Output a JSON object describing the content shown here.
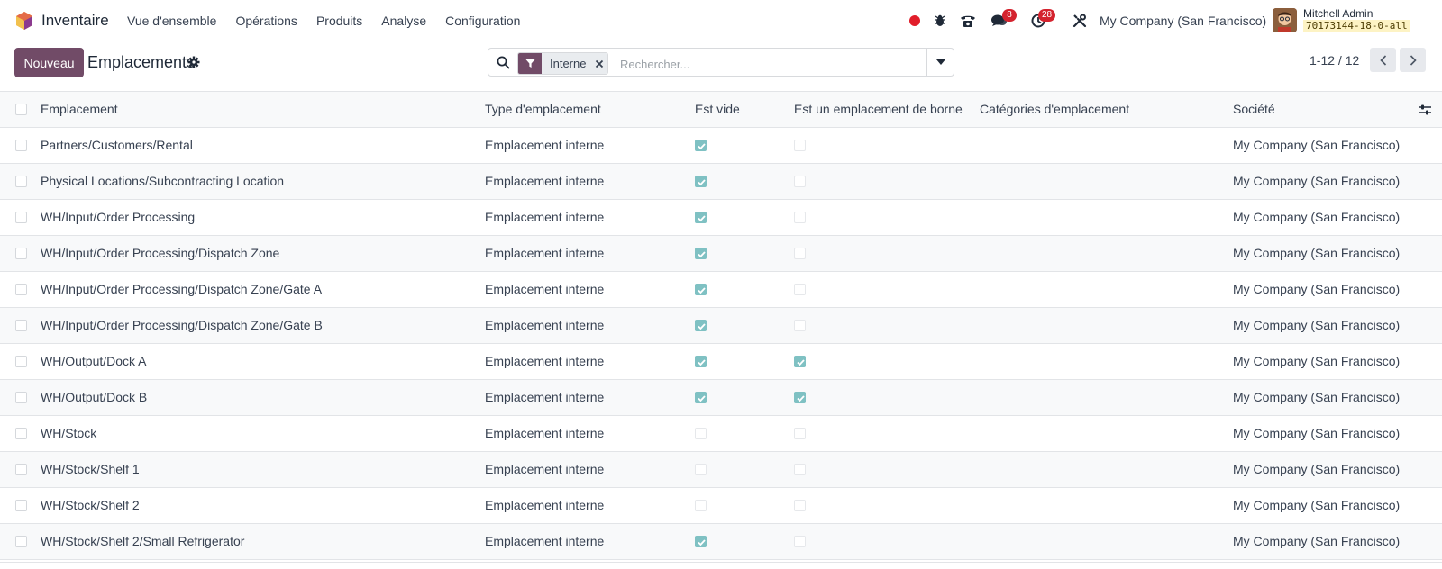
{
  "app": {
    "name": "Inventaire",
    "brand_color": "#714b67"
  },
  "menu": [
    "Vue d'ensemble",
    "Opérations",
    "Produits",
    "Analyse",
    "Configuration"
  ],
  "systray": {
    "chat_badge": "8",
    "activity_badge": "28",
    "company": "My Company (San Francisco)",
    "user_name": "Mitchell Admin",
    "database": "70173144-18-0-all"
  },
  "control_panel": {
    "new_button": "Nouveau",
    "title": "Emplacements",
    "search": {
      "facet": "Interne",
      "placeholder": "Rechercher..."
    },
    "pager": "1-12 / 12"
  },
  "list": {
    "headers": {
      "name": "Emplacement",
      "type": "Type d'emplacement",
      "empty": "Est vide",
      "dock": "Est un emplacement de borne",
      "categories": "Catégories d'emplacement",
      "company": "Société"
    },
    "rows": [
      {
        "name": "Partners/Customers/Rental",
        "type": "Emplacement interne",
        "empty": true,
        "dock": false,
        "categories": "",
        "company": "My Company (San Francisco)"
      },
      {
        "name": "Physical Locations/Subcontracting Location",
        "type": "Emplacement interne",
        "empty": true,
        "dock": false,
        "categories": "",
        "company": "My Company (San Francisco)"
      },
      {
        "name": "WH/Input/Order Processing",
        "type": "Emplacement interne",
        "empty": true,
        "dock": false,
        "categories": "",
        "company": "My Company (San Francisco)"
      },
      {
        "name": "WH/Input/Order Processing/Dispatch Zone",
        "type": "Emplacement interne",
        "empty": true,
        "dock": false,
        "categories": "",
        "company": "My Company (San Francisco)"
      },
      {
        "name": "WH/Input/Order Processing/Dispatch Zone/Gate A",
        "type": "Emplacement interne",
        "empty": true,
        "dock": false,
        "categories": "",
        "company": "My Company (San Francisco)"
      },
      {
        "name": "WH/Input/Order Processing/Dispatch Zone/Gate B",
        "type": "Emplacement interne",
        "empty": true,
        "dock": false,
        "categories": "",
        "company": "My Company (San Francisco)"
      },
      {
        "name": "WH/Output/Dock A",
        "type": "Emplacement interne",
        "empty": true,
        "dock": true,
        "categories": "",
        "company": "My Company (San Francisco)"
      },
      {
        "name": "WH/Output/Dock B",
        "type": "Emplacement interne",
        "empty": true,
        "dock": true,
        "categories": "",
        "company": "My Company (San Francisco)"
      },
      {
        "name": "WH/Stock",
        "type": "Emplacement interne",
        "empty": false,
        "dock": false,
        "categories": "",
        "company": "My Company (San Francisco)"
      },
      {
        "name": "WH/Stock/Shelf 1",
        "type": "Emplacement interne",
        "empty": false,
        "dock": false,
        "categories": "",
        "company": "My Company (San Francisco)"
      },
      {
        "name": "WH/Stock/Shelf 2",
        "type": "Emplacement interne",
        "empty": false,
        "dock": false,
        "categories": "",
        "company": "My Company (San Francisco)"
      },
      {
        "name": "WH/Stock/Shelf 2/Small Refrigerator",
        "type": "Emplacement interne",
        "empty": true,
        "dock": false,
        "categories": "",
        "company": "My Company (San Francisco)"
      }
    ]
  }
}
